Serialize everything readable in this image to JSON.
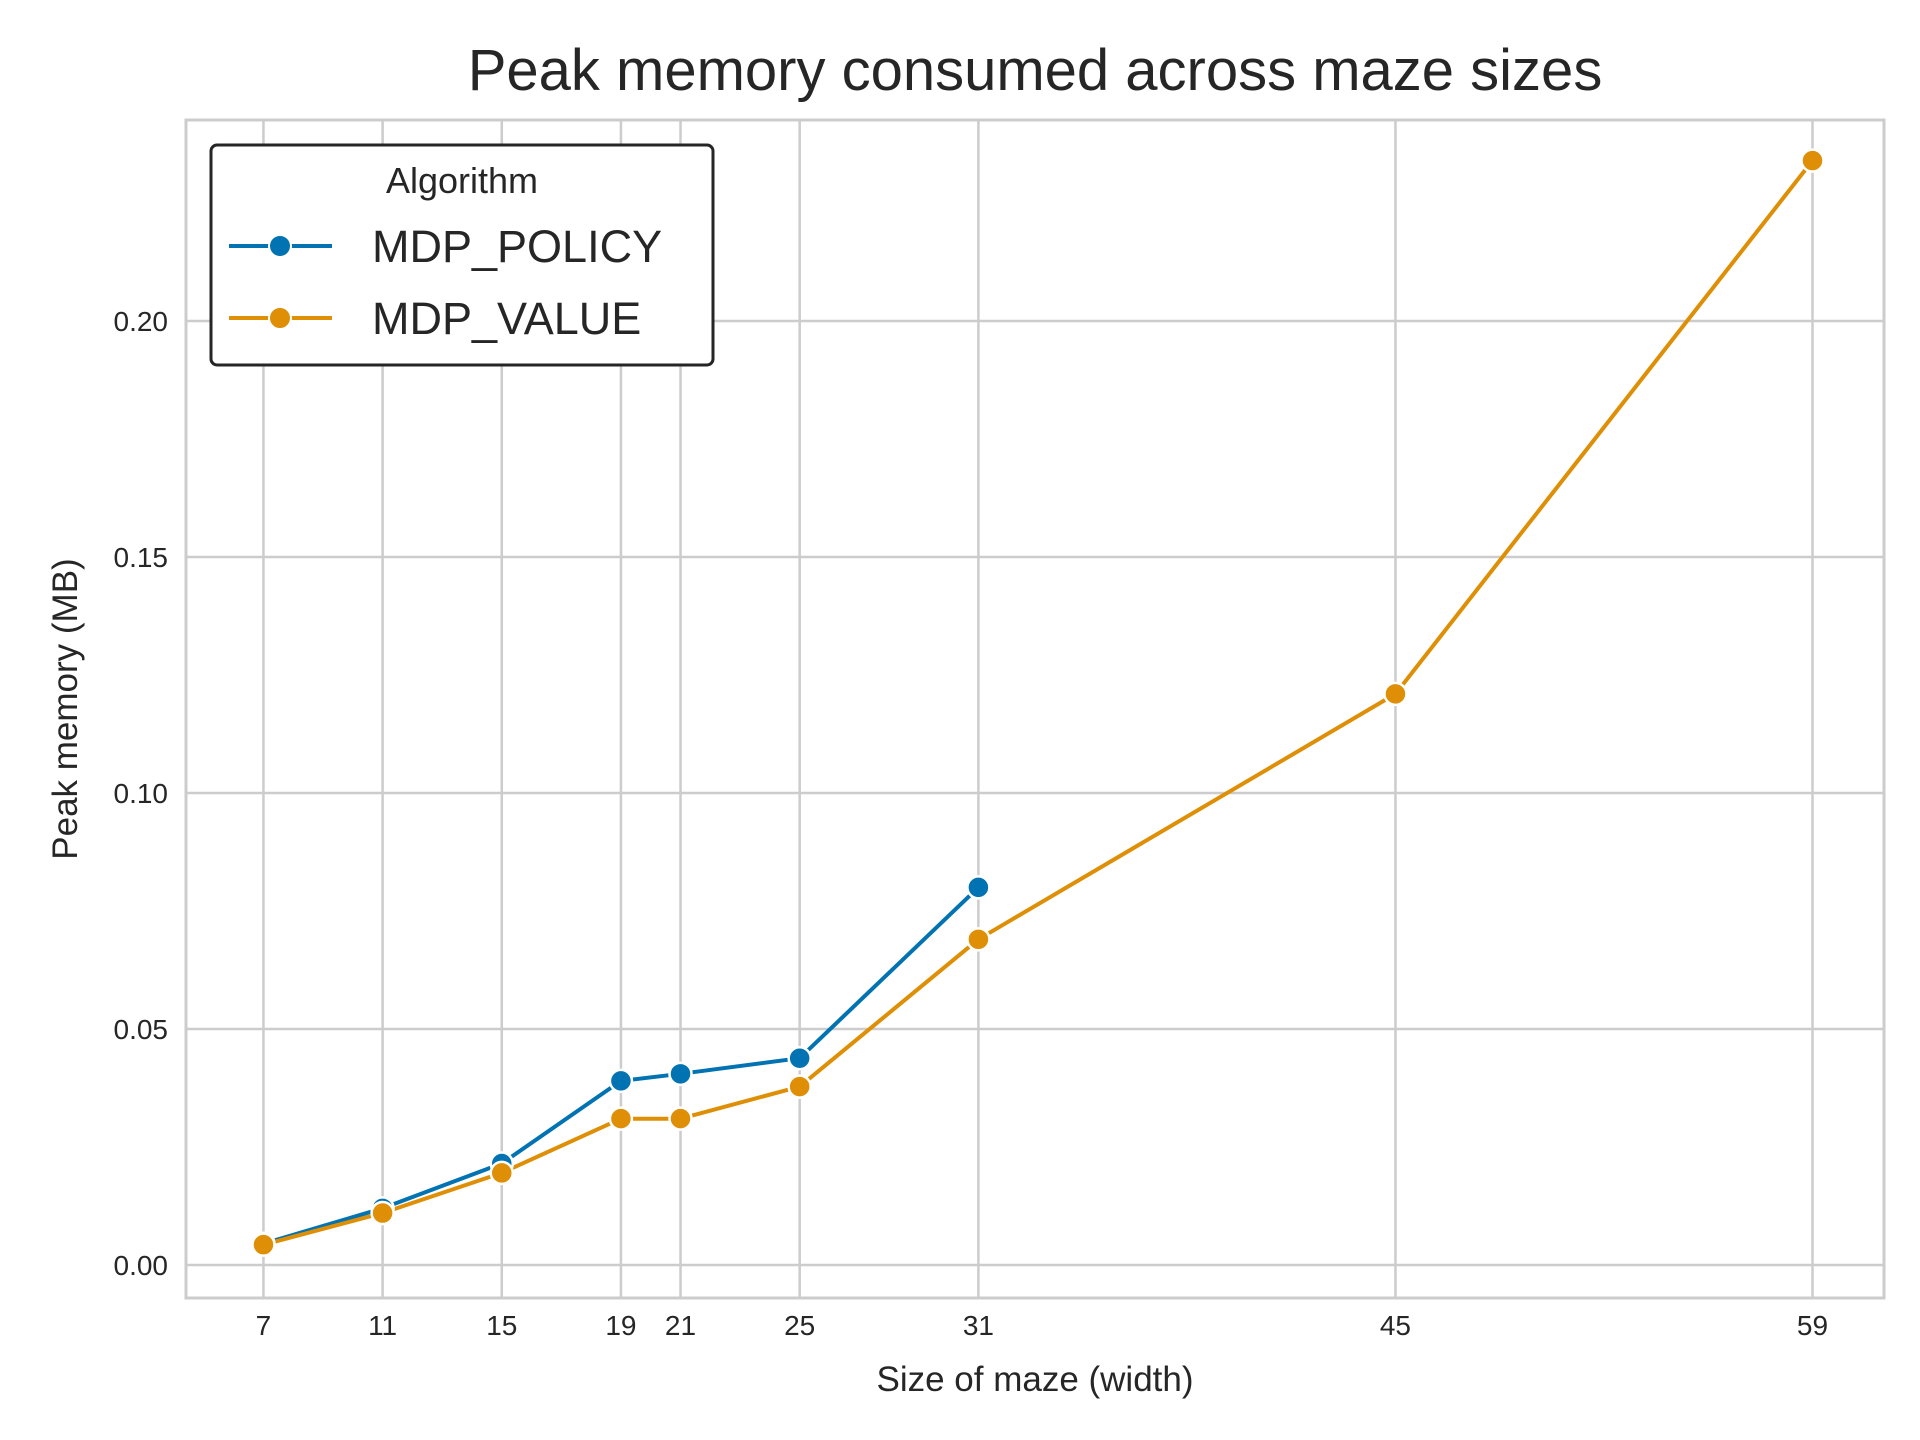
{
  "chart_data": {
    "type": "line",
    "title": "Peak memory consumed across maze sizes",
    "xlabel": "Size of maze (width)",
    "ylabel": "Peak memory (MB)",
    "x_ticks": [
      7,
      11,
      15,
      19,
      21,
      25,
      31,
      45,
      59
    ],
    "y_ticks": [
      0.0,
      0.05,
      0.1,
      0.15,
      0.2
    ],
    "y_tick_labels": [
      "0.00",
      "0.05",
      "0.10",
      "0.15",
      "0.20"
    ],
    "xlim": [
      4.4,
      61.4
    ],
    "ylim": [
      -0.007,
      0.2426
    ],
    "grid": true,
    "legend": {
      "title": "Algorithm",
      "location": "top-left"
    },
    "series": [
      {
        "name": "MDP_POLICY",
        "color": "#0173b2",
        "x": [
          7,
          11,
          15,
          19,
          21,
          25,
          31
        ],
        "y": [
          0.0045,
          0.012,
          0.0215,
          0.039,
          0.0405,
          0.0438,
          0.08
        ]
      },
      {
        "name": "MDP_VALUE",
        "color": "#de8f05",
        "x": [
          7,
          11,
          15,
          19,
          21,
          25,
          31,
          45,
          59
        ],
        "y": [
          0.0043,
          0.011,
          0.0195,
          0.031,
          0.031,
          0.0378,
          0.069,
          0.121,
          0.234
        ]
      }
    ]
  }
}
